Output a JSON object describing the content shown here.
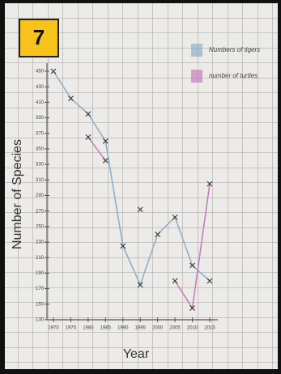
{
  "badge": "7",
  "chart_data": {
    "type": "line",
    "y_label": "Number of Species",
    "x_label": "Year",
    "x": [
      1970,
      1975,
      1980,
      1985,
      1990,
      1995,
      2000,
      2005,
      2010,
      2015
    ],
    "xlim": [
      1970,
      2015
    ],
    "xticks": [
      1970,
      1975,
      1980,
      1985,
      1990,
      1995,
      2000,
      2005,
      2010,
      2015
    ],
    "ylim": [
      130,
      450
    ],
    "yticks": [
      130,
      150,
      170,
      190,
      210,
      230,
      250,
      270,
      290,
      310,
      330,
      350,
      370,
      390,
      410,
      430,
      450
    ],
    "grid": true,
    "legend": "top-right",
    "series": [
      {
        "name": "Numbers of tigers",
        "color": "#8fb0c8",
        "values": [
          450,
          415,
          395,
          360,
          225,
          175,
          240,
          262,
          200,
          180
        ]
      },
      {
        "name": "number of turtles",
        "color": "#c47fc0",
        "values": [
          null,
          null,
          365,
          335,
          null,
          272,
          null,
          180,
          145,
          305
        ]
      }
    ]
  }
}
